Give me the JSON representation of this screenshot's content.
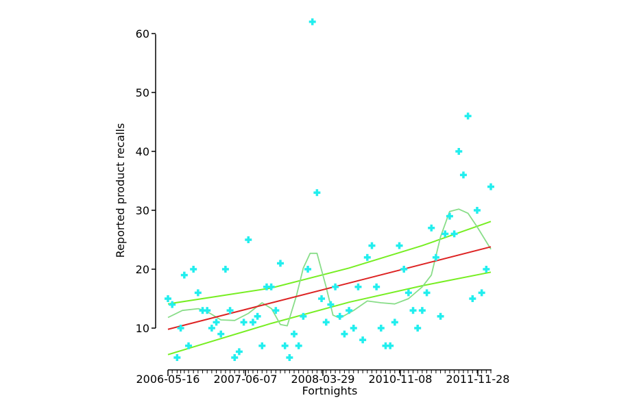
{
  "chart_data": {
    "type": "scatter",
    "title": "",
    "xlabel": "Fortnights",
    "ylabel": "Reported product recalls",
    "x_axis_kind": "date",
    "x_range": [
      "2006-04-15",
      "2012-04-01"
    ],
    "ylim": [
      3,
      62
    ],
    "y_ticks": [
      10,
      20,
      30,
      40,
      50,
      60
    ],
    "x_tick_labels": [
      "2006-05-16",
      "2007-06-07",
      "2008-03-29",
      "2010-11-08",
      "2011-11-28"
    ],
    "grid": false,
    "legend": "none",
    "colors": {
      "points": "#22eeee",
      "trend": "#dd2222",
      "confidence_band": "#77ee22",
      "smoother": "#88dd88"
    },
    "points": [
      [
        "2006-04-18",
        15
      ],
      [
        "2006-05-01",
        14
      ],
      [
        "2006-05-16",
        5
      ],
      [
        "2006-05-27",
        10
      ],
      [
        "2006-06-07",
        19
      ],
      [
        "2006-06-20",
        7
      ],
      [
        "2006-07-05",
        20
      ],
      [
        "2006-07-19",
        16
      ],
      [
        "2006-08-02",
        13
      ],
      [
        "2006-08-16",
        13
      ],
      [
        "2006-08-30",
        10
      ],
      [
        "2006-09-13",
        11
      ],
      [
        "2006-09-27",
        9
      ],
      [
        "2006-10-11",
        20
      ],
      [
        "2006-10-25",
        13
      ],
      [
        "2006-11-08",
        5
      ],
      [
        "2006-11-22",
        6
      ],
      [
        "2006-12-06",
        11
      ],
      [
        "2006-12-20",
        25
      ],
      [
        "2007-01-03",
        11
      ],
      [
        "2007-01-17",
        12
      ],
      [
        "2007-01-31",
        7
      ],
      [
        "2007-02-14",
        17
      ],
      [
        "2007-02-28",
        17
      ],
      [
        "2007-03-14",
        13
      ],
      [
        "2007-03-28",
        21
      ],
      [
        "2007-04-11",
        7
      ],
      [
        "2007-04-25",
        5
      ],
      [
        "2007-05-09",
        9
      ],
      [
        "2007-05-23",
        7
      ],
      [
        "2007-06-06",
        12
      ],
      [
        "2007-06-20",
        20
      ],
      [
        "2007-07-04",
        62
      ],
      [
        "2007-07-18",
        33
      ],
      [
        "2007-08-01",
        15
      ],
      [
        "2007-08-15",
        11
      ],
      [
        "2007-08-29",
        14
      ],
      [
        "2007-09-12",
        17
      ],
      [
        "2007-09-26",
        12
      ],
      [
        "2007-10-10",
        9
      ],
      [
        "2007-10-24",
        13
      ],
      [
        "2007-11-07",
        10
      ],
      [
        "2007-11-21",
        17
      ],
      [
        "2007-12-05",
        8
      ],
      [
        "2007-12-19",
        22
      ],
      [
        "2008-01-02",
        24
      ],
      [
        "2008-01-16",
        17
      ],
      [
        "2008-01-30",
        10
      ],
      [
        "2008-02-13",
        7
      ],
      [
        "2008-02-27",
        7
      ],
      [
        "2008-03-12",
        11
      ],
      [
        "2008-03-26",
        24
      ],
      [
        "2008-04-09",
        20
      ],
      [
        "2008-04-23",
        16
      ],
      [
        "2008-05-07",
        13
      ],
      [
        "2008-05-21",
        10
      ],
      [
        "2008-06-04",
        13
      ],
      [
        "2008-06-18",
        16
      ],
      [
        "2008-07-02",
        27
      ],
      [
        "2008-07-16",
        22
      ],
      [
        "2008-07-30",
        12
      ],
      [
        "2008-08-13",
        26
      ],
      [
        "2008-08-27",
        29
      ],
      [
        "2008-09-10",
        26
      ],
      [
        "2008-09-24",
        40
      ],
      [
        "2008-10-08",
        36
      ],
      [
        "2008-10-22",
        46
      ],
      [
        "2008-11-05",
        15
      ],
      [
        "2008-11-19",
        30
      ],
      [
        "2008-12-03",
        16
      ],
      [
        "2008-12-17",
        20
      ],
      [
        "2008-12-31",
        34
      ]
    ],
    "trend_line": {
      "start": [
        "2006-04-18",
        9.8
      ],
      "end": [
        "2008-12-31",
        23.8
      ]
    },
    "confidence_band": {
      "upper": [
        [
          "2006-04-18",
          14.1
        ],
        [
          "2007-02-28",
          16.8
        ],
        [
          "2007-10-24",
          20.2
        ],
        [
          "2008-06-04",
          24.0
        ],
        [
          "2008-12-31",
          28.1
        ]
      ],
      "lower": [
        [
          "2006-04-18",
          5.5
        ],
        [
          "2007-02-28",
          10.8
        ],
        [
          "2007-10-24",
          14.4
        ],
        [
          "2008-06-04",
          17.2
        ],
        [
          "2008-12-31",
          19.5
        ]
      ]
    },
    "smoother": [
      [
        "2006-04-18",
        11.8
      ],
      [
        "2006-06-01",
        13.0
      ],
      [
        "2006-07-20",
        13.3
      ],
      [
        "2006-08-16",
        12.8
      ],
      [
        "2006-09-27",
        11.4
      ],
      [
        "2006-11-08",
        11.3
      ],
      [
        "2006-12-20",
        12.5
      ],
      [
        "2007-01-31",
        14.3
      ],
      [
        "2007-03-01",
        13.3
      ],
      [
        "2007-03-28",
        10.6
      ],
      [
        "2007-04-18",
        10.4
      ],
      [
        "2007-05-16",
        15.5
      ],
      [
        "2007-06-06",
        20.2
      ],
      [
        "2007-06-27",
        22.7
      ],
      [
        "2007-07-18",
        22.7
      ],
      [
        "2007-08-15",
        17.0
      ],
      [
        "2007-09-05",
        12.2
      ],
      [
        "2007-09-26",
        11.7
      ],
      [
        "2007-11-07",
        13.0
      ],
      [
        "2007-12-19",
        14.6
      ],
      [
        "2008-01-30",
        14.3
      ],
      [
        "2008-03-12",
        14.1
      ],
      [
        "2008-04-23",
        15.0
      ],
      [
        "2008-06-04",
        17.0
      ],
      [
        "2008-07-02",
        19.0
      ],
      [
        "2008-07-30",
        25.5
      ],
      [
        "2008-08-27",
        29.8
      ],
      [
        "2008-09-24",
        30.2
      ],
      [
        "2008-10-22",
        29.5
      ],
      [
        "2008-11-19",
        27.2
      ],
      [
        "2008-12-31",
        23.4
      ]
    ]
  }
}
